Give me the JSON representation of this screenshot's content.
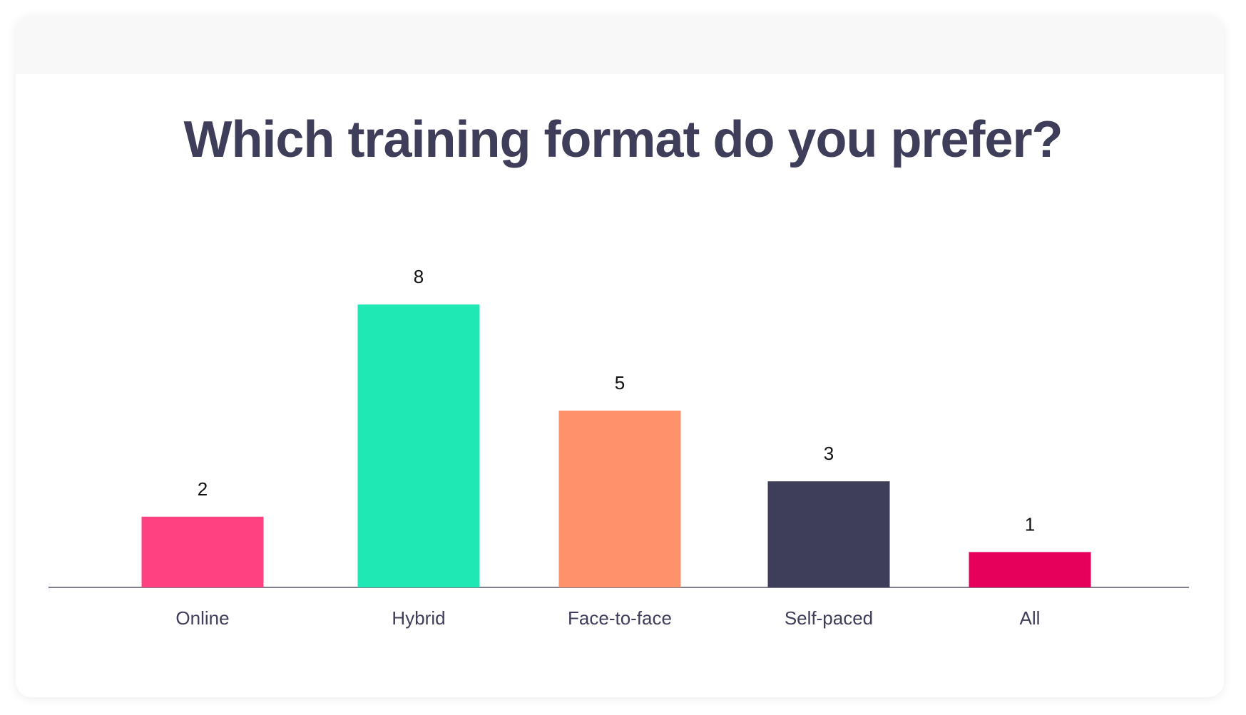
{
  "chart_data": {
    "type": "bar",
    "title": "Which training format do you prefer?",
    "categories": [
      "Online",
      "Hybrid",
      "Face-to-face",
      "Self-paced",
      "All"
    ],
    "values": [
      2,
      8,
      5,
      3,
      1
    ],
    "colors": [
      "#ff4081",
      "#20e8b4",
      "#ff926a",
      "#3e3d5a",
      "#e6005c"
    ],
    "xlabel": "",
    "ylabel": "",
    "grid": false,
    "legend": "none"
  },
  "colors": {
    "axis": "#555566",
    "title": "#3e3d5a"
  }
}
